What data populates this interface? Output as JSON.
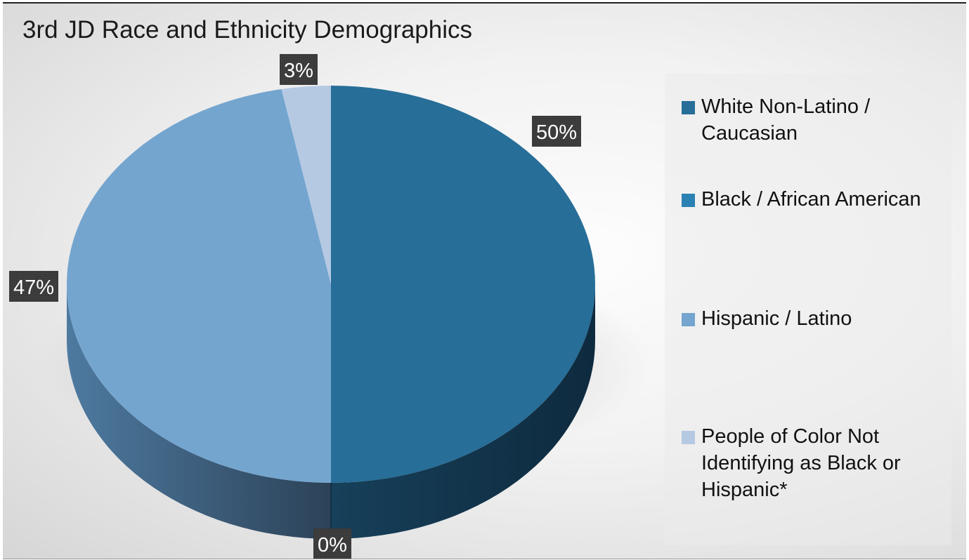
{
  "chart_data": {
    "type": "pie",
    "title": "3rd JD Race and Ethnicity Demographics",
    "categories": [
      "White Non-Latino / Caucasian",
      "Black / African American",
      "Hispanic / Latino",
      "People of Color Not Identifying as Black or Hispanic*"
    ],
    "values": [
      50,
      0,
      47,
      3
    ],
    "data_labels": [
      "50%",
      "0%",
      "47%",
      "3%"
    ],
    "colors": [
      "#276e98",
      "#2c81b4",
      "#74a5cf",
      "#b5c9e3"
    ],
    "legend_position": "right",
    "style": "3d"
  }
}
